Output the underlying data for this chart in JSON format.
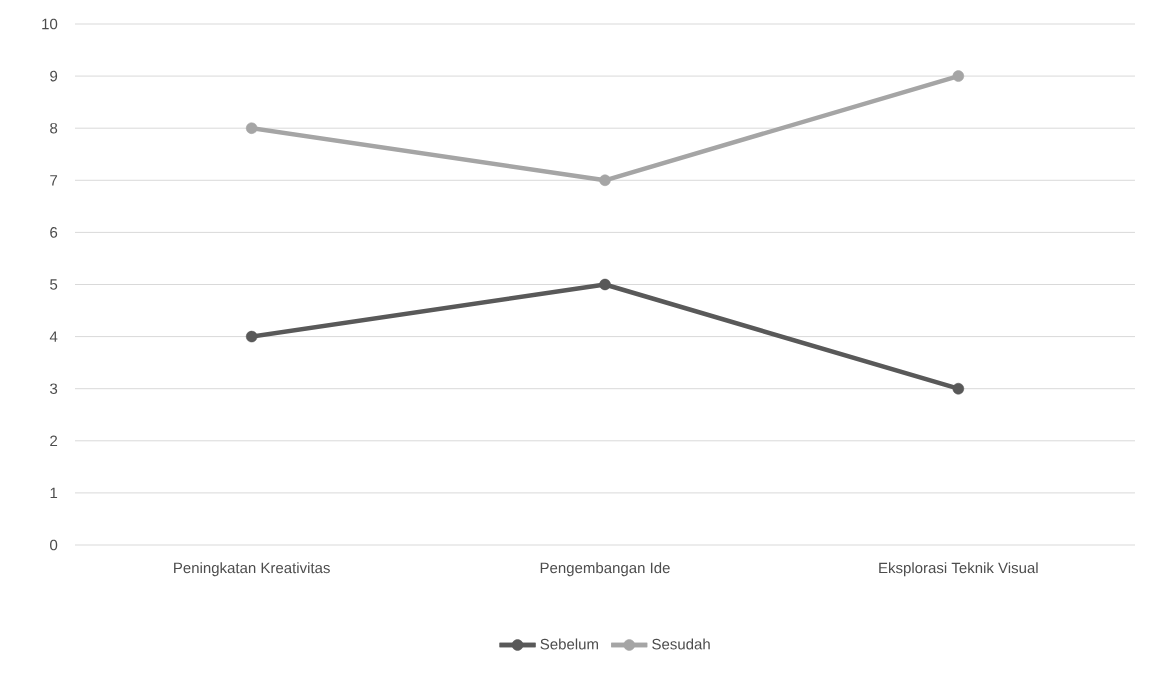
{
  "chart_data": {
    "type": "line",
    "categories": [
      "Peningkatan Kreativitas",
      "Pengembangan Ide",
      "Eksplorasi Teknik Visual"
    ],
    "series": [
      {
        "name": "Sebelum",
        "color": "#595959",
        "values": [
          4,
          5,
          3
        ]
      },
      {
        "name": "Sesudah",
        "color": "#a5a5a5",
        "values": [
          8,
          7,
          9
        ]
      }
    ],
    "ylim": [
      0,
      10
    ],
    "yticks": [
      0,
      1,
      2,
      3,
      4,
      5,
      6,
      7,
      8,
      9,
      10
    ],
    "grid": "y",
    "legend": "bottom",
    "marker": "circle"
  }
}
